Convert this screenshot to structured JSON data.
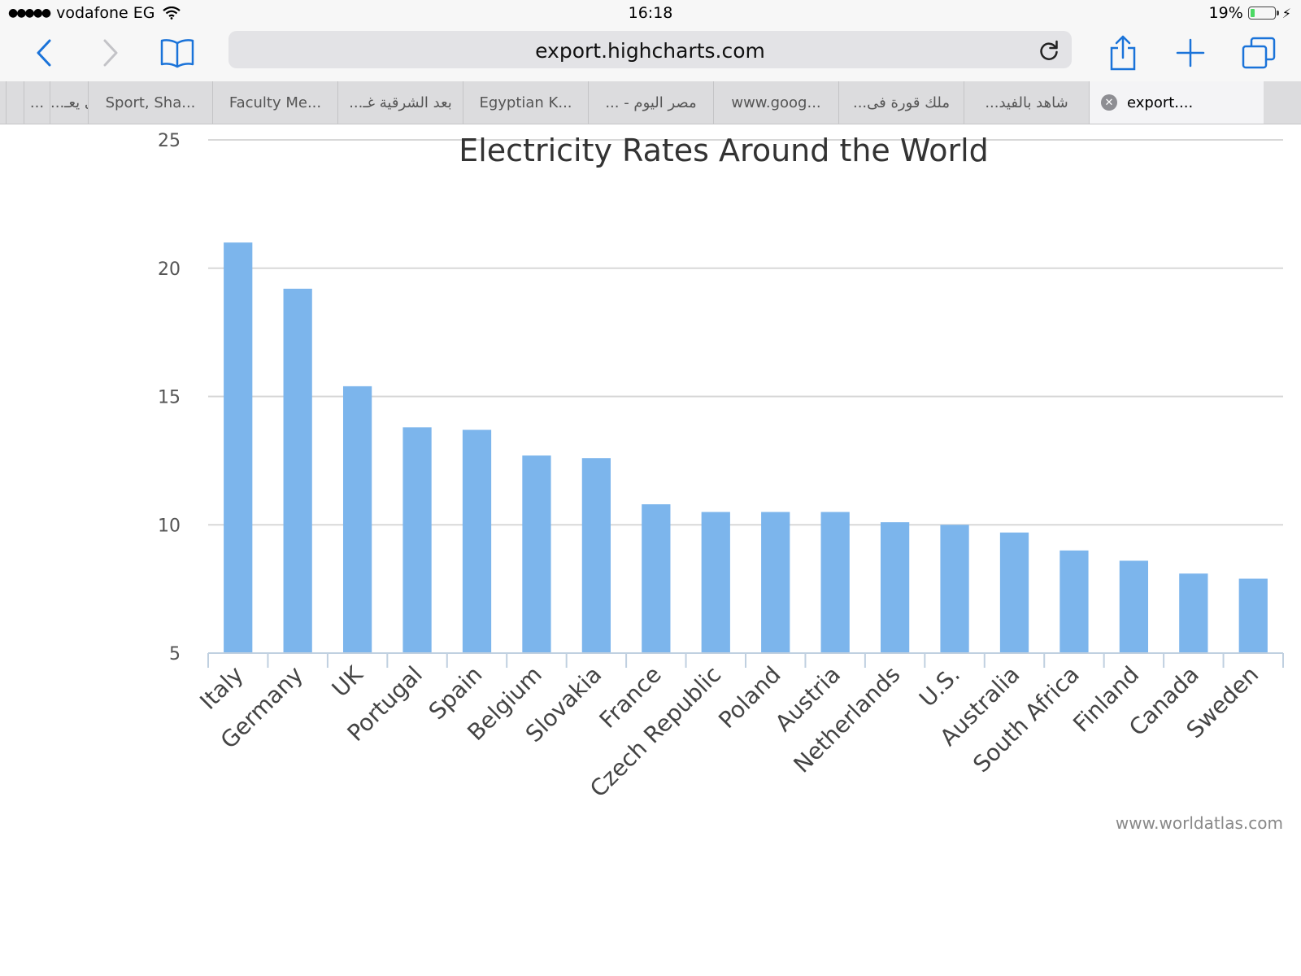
{
  "status_bar": {
    "carrier": "vodafone EG",
    "time": "16:18",
    "battery_percent": "19%",
    "battery_level": 0.19
  },
  "browser": {
    "url": "export.highcharts.com",
    "tabs": [
      {
        "label": ""
      },
      {
        "label": ""
      },
      {
        "label": "..."
      },
      {
        "label": "...فمدى يعـ"
      },
      {
        "label": "Sport, Sha..."
      },
      {
        "label": "Faculty Me..."
      },
      {
        "label": "...بعد الشرقية غـ"
      },
      {
        "label": "Egyptian K..."
      },
      {
        "label": "... - مصر اليوم"
      },
      {
        "label": "www.goog..."
      },
      {
        "label": "...ملك قورة فى"
      },
      {
        "label": "...شاهد بالفيد"
      },
      {
        "label": "export...."
      }
    ]
  },
  "chart_data": {
    "type": "bar",
    "title": "Electricity Rates Around the World",
    "credit": "www.worldatlas.com",
    "categories": [
      "Italy",
      "Germany",
      "UK",
      "Portugal",
      "Spain",
      "Belgium",
      "Slovakia",
      "France",
      "Czech Republic",
      "Poland",
      "Austria",
      "Netherlands",
      "U.S.",
      "Australia",
      "South Africa",
      "Finland",
      "Canada",
      "Sweden"
    ],
    "values": [
      21,
      19.2,
      15.4,
      13.8,
      13.7,
      12.7,
      12.6,
      10.8,
      10.5,
      10.5,
      10.5,
      10.1,
      10.0,
      9.7,
      9.0,
      8.6,
      8.1,
      7.9
    ],
    "ylim": [
      5,
      25
    ],
    "yticks": [
      "5",
      "10",
      "15",
      "20",
      "25"
    ],
    "xlabel": "",
    "ylabel": "",
    "bar_color": "#7cb5ec",
    "grid": true
  }
}
